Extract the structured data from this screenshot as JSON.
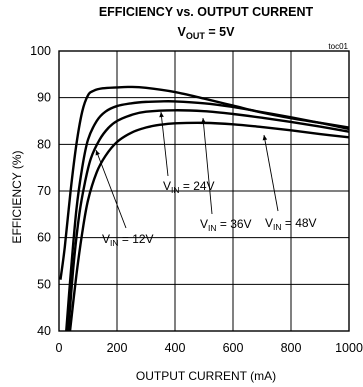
{
  "chart_data": {
    "type": "line",
    "title": "EFFICIENCY vs. OUTPUT CURRENT",
    "subtitle": {
      "base": "V",
      "sub": "OUT",
      "rest": " = 5V"
    },
    "figure_id": "toc01",
    "xlabel": "OUTPUT CURRENT (mA)",
    "ylabel": "EFFICIENCY (%)",
    "xlim": [
      0,
      1000
    ],
    "ylim": [
      40,
      100
    ],
    "xticks": [
      0,
      200,
      400,
      600,
      800,
      1000
    ],
    "yticks": [
      40,
      50,
      60,
      70,
      80,
      90,
      100
    ],
    "grid": true,
    "series": [
      {
        "name": "V_IN = 12V",
        "x": [
          5,
          20,
          40,
          60,
          80,
          100,
          120,
          150,
          200,
          250,
          300,
          400,
          500,
          600,
          700,
          800,
          900,
          1000
        ],
        "y": [
          51,
          58,
          70,
          80,
          87,
          90.5,
          91.5,
          92,
          92.2,
          92.3,
          92.1,
          91.2,
          89.8,
          88.3,
          86.8,
          85.6,
          84.6,
          83.6
        ]
      },
      {
        "name": "V_IN = 24V",
        "x": [
          25,
          40,
          60,
          80,
          100,
          130,
          160,
          200,
          250,
          300,
          350,
          400,
          500,
          600,
          700,
          800,
          900,
          1000
        ],
        "y": [
          40,
          52,
          66,
          75,
          81,
          85,
          87,
          88.2,
          88.8,
          89.1,
          89.2,
          89.2,
          88.8,
          88,
          86.9,
          85.8,
          84.6,
          83.3
        ]
      },
      {
        "name": "V_IN = 36V",
        "x": [
          32,
          50,
          70,
          90,
          110,
          140,
          170,
          200,
          250,
          300,
          400,
          500,
          600,
          700,
          800,
          900,
          1000
        ],
        "y": [
          40,
          54,
          65,
          72,
          77,
          81,
          83.5,
          85,
          86.3,
          87,
          87.3,
          87.1,
          86.5,
          85.7,
          84.8,
          83.8,
          82.7
        ]
      },
      {
        "name": "V_IN = 48V",
        "x": [
          38,
          60,
          80,
          100,
          130,
          160,
          200,
          250,
          300,
          350,
          400,
          500,
          600,
          700,
          800,
          900,
          1000
        ],
        "y": [
          40,
          52,
          61,
          68,
          74,
          77.5,
          80.5,
          82.5,
          83.6,
          84.2,
          84.5,
          84.6,
          84.3,
          83.7,
          83,
          82.2,
          81.5
        ]
      }
    ],
    "annotations": [
      {
        "base": "V",
        "sub": "IN",
        "rest": " = 12V",
        "ref_series": 0
      },
      {
        "base": "V",
        "sub": "IN",
        "rest": " = 24V",
        "ref_series": 1
      },
      {
        "base": "V",
        "sub": "IN",
        "rest": " = 36V",
        "ref_series": 2
      },
      {
        "base": "V",
        "sub": "IN",
        "rest": " = 48V",
        "ref_series": 3
      }
    ],
    "colors": {
      "line": "#000000",
      "grid": "#000000",
      "background": "#ffffff"
    }
  }
}
